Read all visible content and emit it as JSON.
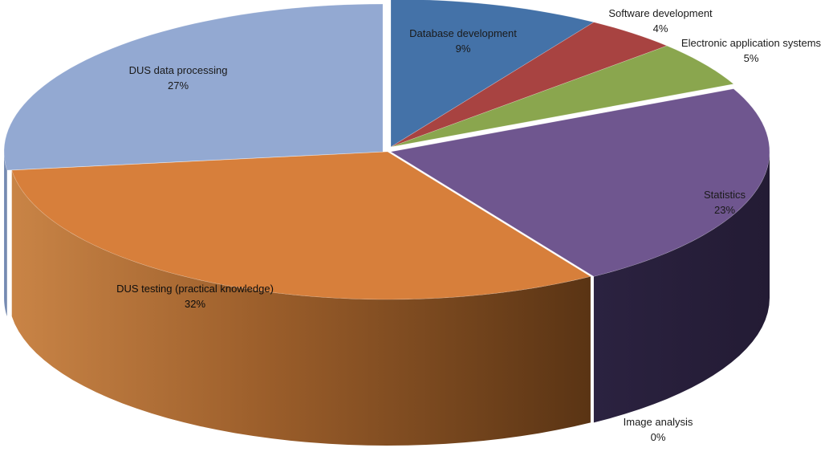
{
  "chart_data": {
    "type": "pie",
    "style": "3d-exploded-pie",
    "legend": "none",
    "slices": [
      {
        "key": "database",
        "label": "Database development",
        "percent_label": "9%",
        "value": 9,
        "color": "#4472a8"
      },
      {
        "key": "software",
        "label": "Software development",
        "percent_label": "4%",
        "value": 4,
        "color": "#a84341"
      },
      {
        "key": "electronic",
        "label": "Electronic application systems",
        "percent_label": "5%",
        "value": 5,
        "color": "#8aa64e"
      },
      {
        "key": "statistics",
        "label": "Statistics",
        "percent_label": "23%",
        "value": 23,
        "color": "#6f568f"
      },
      {
        "key": "image",
        "label": "Image analysis",
        "percent_label": "0%",
        "value": 0,
        "color": "#3d8ca3"
      },
      {
        "key": "dus_testing",
        "label": "DUS testing (practical knowledge)",
        "percent_label": "32%",
        "value": 32,
        "color": "#d77f3b"
      },
      {
        "key": "dus_data",
        "label": "DUS data processing",
        "percent_label": "27%",
        "value": 27,
        "color": "#93a9d2"
      }
    ]
  }
}
